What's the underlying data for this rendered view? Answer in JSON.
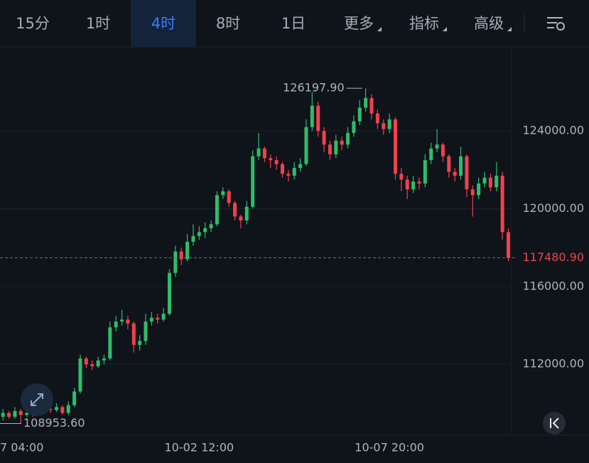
{
  "tabs": [
    "15分",
    "1时",
    "4时",
    "8时",
    "1日",
    "更多",
    "指标",
    "高级"
  ],
  "active_tab": 2,
  "chart_data": {
    "type": "candlestick",
    "up_color": "#2ebd6b",
    "down_color": "#f0414e",
    "ylim": [
      108350,
      128250
    ],
    "yticks": [
      {
        "value": 112000,
        "label": "112000.00"
      },
      {
        "value": 116000,
        "label": "116000.00"
      },
      {
        "value": 120000,
        "label": "120000.00"
      },
      {
        "value": 124000,
        "label": "124000.00"
      }
    ],
    "xlim": [
      -0.5,
      85.3
    ],
    "xticks": [
      {
        "value": 1,
        "label": "7 04:00"
      },
      {
        "value": 33,
        "label": "10-02 12:00"
      },
      {
        "value": 65,
        "label": "10-07 20:00"
      }
    ],
    "high_label": "126197.90",
    "low_label": "108953.60",
    "last_price_label": "117480.90",
    "candles": {
      "open": [
        109300,
        109500,
        109300,
        109600,
        109400,
        109500,
        109450,
        109600,
        109700,
        109650,
        109800,
        109500,
        109900,
        110600,
        112300,
        112000,
        111900,
        112200,
        112300,
        113900,
        114200,
        114300,
        114100,
        113000,
        113200,
        114200,
        114400,
        114300,
        114600,
        116700,
        117800,
        117400,
        118300,
        118600,
        118800,
        119000,
        119200,
        120700,
        120900,
        120300,
        119600,
        119400,
        120100,
        122700,
        123100,
        122600,
        122500,
        122300,
        121800,
        121700,
        122100,
        122300,
        124200,
        125300,
        124000,
        123300,
        122800,
        123500,
        123300,
        123900,
        124500,
        125200,
        125700,
        124900,
        124400,
        124100,
        124600,
        121800,
        121500,
        121000,
        121400,
        121300,
        122500,
        123100,
        123300,
        122700,
        121900,
        121700,
        122700,
        121000,
        120700,
        121300,
        121600,
        121100,
        121700,
        118800
      ],
      "high": [
        109700,
        109600,
        109800,
        109700,
        109700,
        109650,
        109800,
        109900,
        109850,
        110000,
        109900,
        110100,
        110800,
        112500,
        112400,
        112200,
        112400,
        112500,
        114200,
        114500,
        114800,
        114500,
        114200,
        113500,
        114600,
        114700,
        114600,
        114900,
        116900,
        118100,
        118000,
        118700,
        119200,
        119100,
        119300,
        119400,
        120900,
        121100,
        121000,
        120400,
        119700,
        120400,
        123000,
        123900,
        123200,
        122800,
        122700,
        122400,
        122000,
        122400,
        122600,
        124600,
        126000,
        125500,
        124200,
        123500,
        123800,
        123700,
        124200,
        124800,
        125600,
        126197.9,
        125900,
        125100,
        124600,
        124900,
        124700,
        122100,
        121700,
        121700,
        121600,
        122800,
        123400,
        124100,
        123400,
        122800,
        122100,
        123200,
        122800,
        121200,
        121600,
        121900,
        121800,
        122400,
        121900,
        119000
      ],
      "low": [
        109100,
        109200,
        109200,
        108953.6,
        109300,
        109300,
        109350,
        109500,
        109500,
        109550,
        109400,
        109400,
        109800,
        110500,
        111800,
        111700,
        111800,
        112000,
        112200,
        113700,
        114000,
        113800,
        112600,
        112700,
        113000,
        114000,
        114100,
        114200,
        114500,
        116500,
        117100,
        117300,
        118100,
        118400,
        118500,
        118800,
        119100,
        120500,
        120100,
        119400,
        119000,
        119200,
        120000,
        122500,
        122400,
        122100,
        122000,
        121600,
        121400,
        121500,
        121900,
        122200,
        124000,
        123700,
        122900,
        122500,
        122600,
        123000,
        123100,
        123700,
        124300,
        125000,
        124600,
        124100,
        123800,
        123900,
        121500,
        120900,
        120500,
        120800,
        121000,
        121100,
        122300,
        122900,
        122400,
        121600,
        121400,
        121500,
        120600,
        119600,
        120500,
        121100,
        120900,
        120900,
        118400,
        117300
      ],
      "close": [
        109500,
        109300,
        109600,
        109400,
        109500,
        109450,
        109600,
        109700,
        109650,
        109800,
        109500,
        109900,
        110600,
        112300,
        112000,
        111900,
        112200,
        112300,
        113900,
        114200,
        114300,
        114100,
        113000,
        113200,
        114200,
        114400,
        114300,
        114600,
        116700,
        117800,
        117400,
        118300,
        118600,
        118800,
        119000,
        119200,
        120700,
        120900,
        120300,
        119600,
        119400,
        120100,
        122700,
        123100,
        122600,
        122500,
        122300,
        121800,
        121700,
        122100,
        122300,
        124200,
        125300,
        124000,
        123300,
        122800,
        123500,
        123300,
        123900,
        124500,
        125200,
        125700,
        124900,
        124400,
        124100,
        124600,
        121800,
        121500,
        121000,
        121400,
        121300,
        122500,
        123100,
        123300,
        122700,
        121900,
        121700,
        122700,
        121000,
        120700,
        121300,
        121600,
        121100,
        121700,
        118800,
        117480.9
      ]
    }
  }
}
